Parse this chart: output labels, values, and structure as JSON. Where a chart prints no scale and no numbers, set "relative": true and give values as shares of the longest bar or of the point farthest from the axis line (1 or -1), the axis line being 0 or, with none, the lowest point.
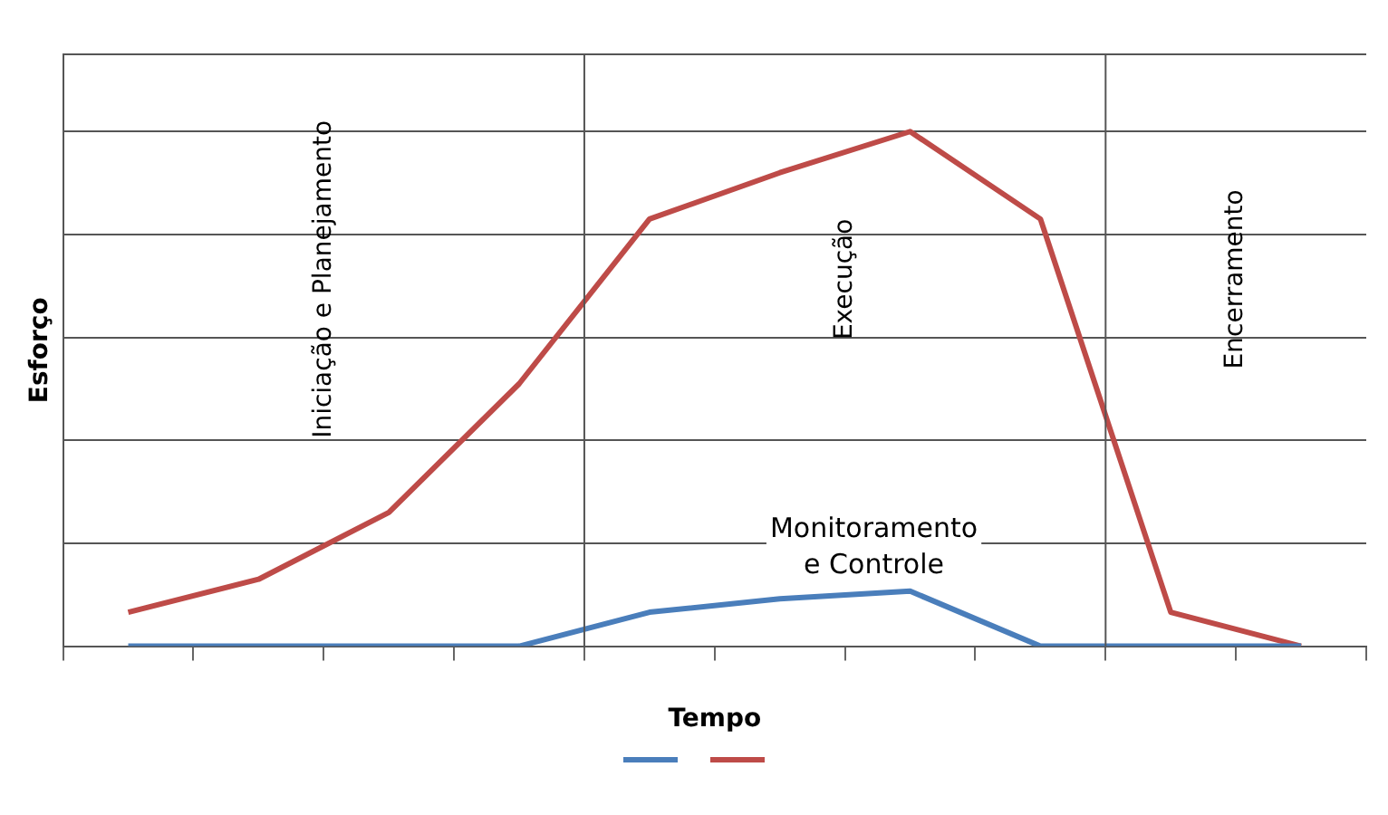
{
  "chart_data": {
    "type": "line",
    "relative": true,
    "xlabel": "Tempo",
    "ylabel": "Esforço",
    "categories": [
      null,
      null,
      null,
      null,
      null,
      null,
      null,
      null,
      null,
      null
    ],
    "series": [
      {
        "color": "#4a7ebb",
        "values": [
          0,
          0,
          0,
          0,
          0.066,
          0.092,
          0.107,
          0,
          0,
          0
        ]
      },
      {
        "color": "#be4b48",
        "values": [
          0.066,
          0.13,
          0.26,
          0.51,
          0.83,
          0.92,
          1,
          0.83,
          0.066,
          0
        ]
      }
    ],
    "annotations": [
      "Iniciação e Planejamento",
      "Execução",
      "Encerramento",
      "Monitoramento\ne Controle"
    ],
    "grid": "y",
    "marker": "none",
    "line_style": "solid"
  }
}
